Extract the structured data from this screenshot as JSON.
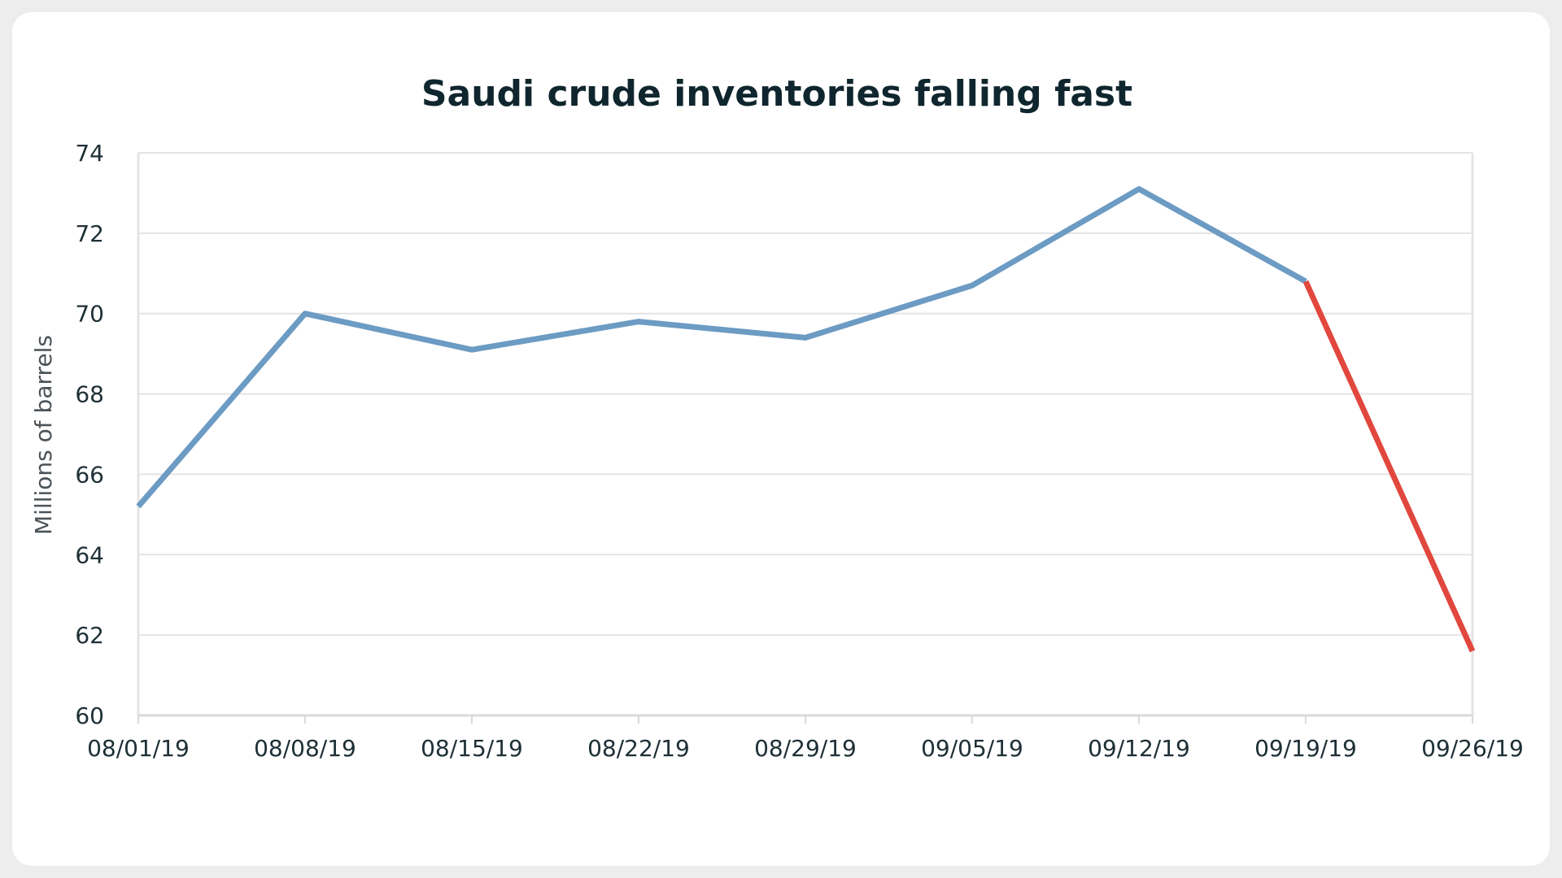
{
  "chart_data": {
    "type": "line",
    "title": "Saudi crude inventories falling fast",
    "xlabel": "",
    "ylabel": "Millions of barrels",
    "categories": [
      "08/01/19",
      "08/08/19",
      "08/15/19",
      "08/22/19",
      "08/29/19",
      "09/05/19",
      "09/12/19",
      "09/19/19",
      "09/26/19"
    ],
    "values": [
      65.2,
      70.0,
      69.1,
      69.8,
      69.4,
      70.7,
      73.1,
      70.8,
      61.6
    ],
    "highlight_segment": {
      "from": "09/19/19",
      "to": "09/26/19",
      "color": "#e1473d"
    },
    "series_color": "#6c9bc3",
    "ylim": [
      60,
      74
    ],
    "yticks": [
      60,
      62,
      64,
      66,
      68,
      70,
      72,
      74
    ],
    "grid": true,
    "legend": "none"
  }
}
